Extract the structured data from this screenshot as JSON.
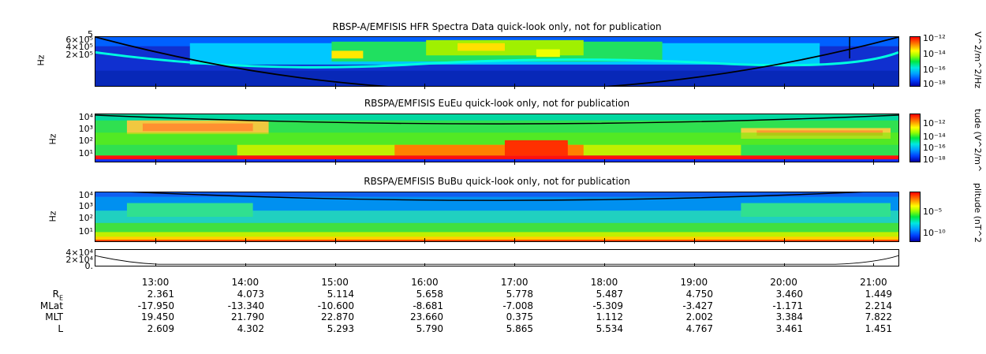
{
  "panels": [
    {
      "title": "RBSP-A/EMFISIS  HFR Spectra Data quick-look only, not for publication",
      "ylabel": "Hz",
      "yticks": [
        "6×10⁵",
        "4×10⁵",
        "2×10⁵"
      ],
      "ytick_top": "5",
      "colorbar_label": "V^2/m^2/Hz",
      "colorbar_ticks": [
        "10⁻¹²",
        "10⁻¹⁴",
        "10⁻¹⁶",
        "10⁻¹⁸"
      ]
    },
    {
      "title": "RBSPA/EMFISIS  EuEu quick-look only, not for publication",
      "ylabel": "Hz",
      "yticks": [
        "10⁴",
        "10³",
        "10²",
        "10¹"
      ],
      "colorbar_label": "tude (V^2/m^",
      "colorbar_ticks": [
        "10⁻¹²",
        "10⁻¹⁴",
        "10⁻¹⁶",
        "10⁻¹⁸"
      ]
    },
    {
      "title": "RBSPA/EMFISIS  BuBu quick-look only, not for publication",
      "ylabel": "Hz",
      "yticks": [
        "10⁴",
        "10³",
        "10²",
        "10¹"
      ],
      "colorbar_label": "plitude (nT^2",
      "colorbar_ticks": [
        "10⁻⁵",
        "10⁻¹⁰"
      ]
    },
    {
      "yticks": [
        "4×10⁴",
        "2×10⁴",
        "0."
      ]
    }
  ],
  "chart_data": {
    "type": "heatmap",
    "x_ticks": [
      "13:00",
      "14:00",
      "15:00",
      "16:00",
      "17:00",
      "18:00",
      "19:00",
      "20:00",
      "21:00"
    ],
    "ephemeris": {
      "labels": [
        "R",
        "MLat",
        "MLT",
        "L"
      ],
      "R_subscript": "E",
      "rows": {
        "R": [
          "2.361",
          "4.073",
          "5.114",
          "5.658",
          "5.778",
          "5.487",
          "4.750",
          "3.460",
          "1.449"
        ],
        "MLat": [
          "-17.950",
          "-13.340",
          "-10.600",
          "-8.681",
          "-7.008",
          "-5.309",
          "-3.427",
          "-1.171",
          "2.214"
        ],
        "MLT": [
          "19.450",
          "21.790",
          "22.870",
          "23.660",
          "0.375",
          "1.112",
          "2.002",
          "3.384",
          "7.822"
        ],
        "L": [
          "2.609",
          "4.302",
          "5.293",
          "5.790",
          "5.865",
          "5.534",
          "4.767",
          "3.461",
          "1.451"
        ]
      }
    }
  }
}
